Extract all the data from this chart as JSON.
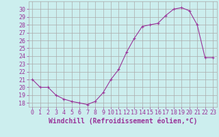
{
  "x": [
    0,
    1,
    2,
    3,
    4,
    5,
    6,
    7,
    8,
    9,
    10,
    11,
    12,
    13,
    14,
    15,
    16,
    17,
    18,
    19,
    20,
    21,
    22,
    23
  ],
  "y": [
    21,
    20,
    20,
    19,
    18.5,
    18.2,
    18.0,
    17.8,
    18.2,
    19.3,
    21.0,
    22.3,
    24.5,
    26.3,
    27.8,
    28.0,
    28.2,
    29.2,
    30.0,
    30.2,
    29.8,
    28.0,
    23.8,
    23.8
  ],
  "line_color": "#993399",
  "marker": "+",
  "bg_color": "#cceeee",
  "grid_color": "#aaaaaa",
  "ylabel_values": [
    18,
    19,
    20,
    21,
    22,
    23,
    24,
    25,
    26,
    27,
    28,
    29,
    30
  ],
  "ylim": [
    17.5,
    31.0
  ],
  "xlim": [
    -0.5,
    23.5
  ],
  "xlabel": "Windchill (Refroidissement éolien,°C)",
  "xlabel_color": "#993399",
  "tick_color": "#993399",
  "tick_fontsize": 6,
  "xlabel_fontsize": 7
}
